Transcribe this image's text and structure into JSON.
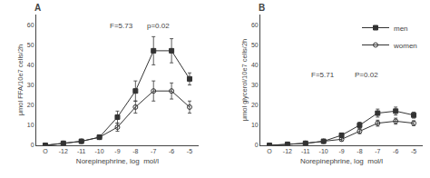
{
  "chart_data": [
    {
      "type": "line",
      "title": "A",
      "x_label": "Norepinephrine, log  mol/l",
      "y_label": "μmol FFA/10e7 cells/2h",
      "categories": [
        "O",
        "-12",
        "-11",
        "-10",
        "-9",
        "-8",
        "-7",
        "-6",
        "-5"
      ],
      "series": [
        {
          "name": "women",
          "color": "#333333",
          "marker": "circle-open",
          "values": [
            0,
            1,
            2,
            4,
            9,
            19,
            27,
            27,
            19
          ],
          "error": [
            0,
            0.5,
            0.5,
            1,
            2,
            3,
            5,
            4,
            3
          ]
        },
        {
          "name": "men",
          "color": "#333333",
          "marker": "square",
          "values": [
            0,
            1,
            2,
            4,
            14,
            27,
            47,
            47,
            33
          ],
          "error": [
            0,
            0.5,
            0.5,
            1,
            3,
            5,
            7,
            6,
            3
          ]
        }
      ],
      "ylim": [
        0,
        65
      ],
      "yticks": [
        0,
        10,
        20,
        30,
        40,
        50,
        60
      ],
      "annotations": [
        "F=5.73",
        "p=0.02"
      ],
      "grid": false,
      "legend": false
    },
    {
      "type": "line",
      "title": "B",
      "x_label": "Norepinephrine, log  mol/l",
      "y_label": "μmol glycerol/10e7 cells/2h",
      "categories": [
        "O",
        "-12",
        "-11",
        "-10",
        "-9",
        "-8",
        "-7",
        "-6",
        "-5"
      ],
      "series": [
        {
          "name": "women",
          "color": "#333333",
          "marker": "circle-open",
          "values": [
            0,
            0.5,
            1,
            2,
            3,
            7,
            11,
            12,
            11
          ],
          "error": [
            0,
            0.2,
            0.3,
            0.5,
            0.8,
            1.2,
            1.5,
            1.5,
            1.2
          ]
        },
        {
          "name": "men",
          "color": "#333333",
          "marker": "square",
          "values": [
            0,
            0.5,
            1,
            2,
            5,
            10,
            16,
            17,
            15
          ],
          "error": [
            0,
            0.2,
            0.3,
            0.5,
            1,
            1.5,
            2,
            2,
            1.5
          ]
        }
      ],
      "ylim": [
        0,
        65
      ],
      "yticks": [
        0,
        10,
        20,
        30,
        40,
        50,
        60
      ],
      "annotations": [
        "F=5.71",
        "P=0.02"
      ],
      "grid": false,
      "legend": "upper right"
    }
  ]
}
